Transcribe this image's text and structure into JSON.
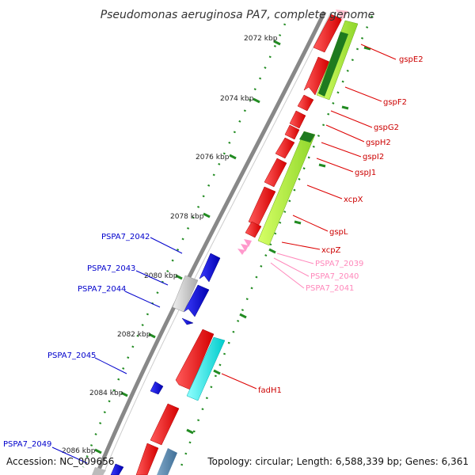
{
  "title": "Pseudomonas aeruginosa PA7, complete genome",
  "accession": "Accession: NC_009656",
  "topology": "Topology: circular; Length: 6,588,339 bp; Genes: 6,361",
  "kbp_labels": [
    "2072 kbp",
    "2074 kbp",
    "2076 kbp",
    "2078 kbp",
    "2080 kbp",
    "2082 kbp",
    "2084 kbp",
    "2086 kbp"
  ],
  "gene_labels": {
    "gspE2": "gspE2",
    "gspF2": "gspF2",
    "gspG2": "gspG2",
    "gspH2": "gspH2",
    "gspI2": "gspI2",
    "gspJ1": "gspJ1",
    "xcpX": "xcpX",
    "gspL": "gspL",
    "xcpZ": "xcpZ",
    "PSPA7_2039": "PSPA7_2039",
    "PSPA7_2040": "PSPA7_2040",
    "PSPA7_2041": "PSPA7_2041",
    "fadH1": "fadH1",
    "PSPA7_2042": "PSPA7_2042",
    "PSPA7_2043": "PSPA7_2043",
    "PSPA7_2044": "PSPA7_2044",
    "PSPA7_2045": "PSPA7_2045",
    "PSPA7_2049": "PSPA7_2049"
  },
  "colors": {
    "forward_cds": "#ff0000",
    "reverse_cds": "#0000ee",
    "gene_feature": "#adff2f",
    "trna": "#ff99cc",
    "pseudo": "#cccccc",
    "cyan_feature": "#00ffff",
    "backbone": "#888888",
    "ticks": "#228b22"
  }
}
